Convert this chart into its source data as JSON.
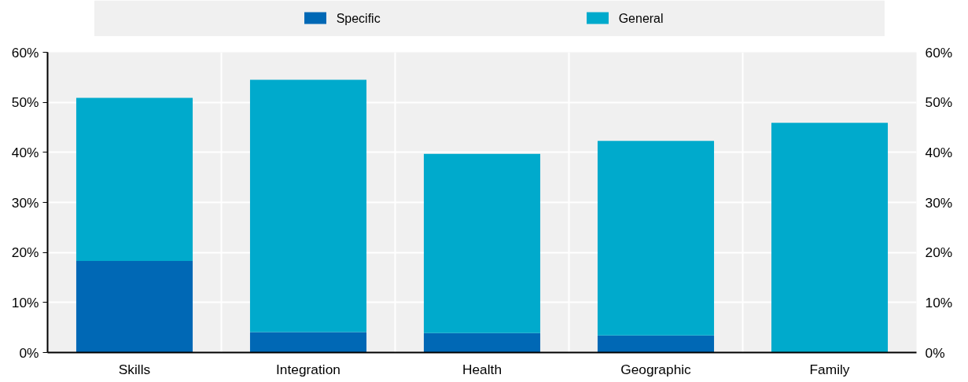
{
  "chart_data": {
    "type": "bar",
    "stacked": true,
    "categories": [
      "Skills",
      "Integration",
      "Health",
      "Geographic",
      "Family"
    ],
    "series": [
      {
        "name": "Specific",
        "color": "#0068b5",
        "values": [
          18.3,
          4.1,
          3.9,
          3.4,
          0
        ]
      },
      {
        "name": "General",
        "color": "#00aacc",
        "values": [
          32.6,
          50.4,
          35.8,
          38.9,
          45.9
        ]
      }
    ],
    "ylim": [
      0,
      60
    ],
    "yticks": [
      {
        "value": 0,
        "label": "0%"
      },
      {
        "value": 10,
        "label": "10%"
      },
      {
        "value": 20,
        "label": "20%"
      },
      {
        "value": 30,
        "label": "30%"
      },
      {
        "value": 40,
        "label": "40%"
      },
      {
        "value": 50,
        "label": "50%"
      },
      {
        "value": 60,
        "label": "60%"
      }
    ],
    "y2lim": [
      0,
      60
    ],
    "y2ticks": [
      {
        "value": 0,
        "label": "0%"
      },
      {
        "value": 10,
        "label": "10%"
      },
      {
        "value": 20,
        "label": "20%"
      },
      {
        "value": 30,
        "label": "30%"
      },
      {
        "value": 40,
        "label": "40%"
      },
      {
        "value": 50,
        "label": "50%"
      },
      {
        "value": 60,
        "label": "60%"
      }
    ],
    "grid": true,
    "legend": "top"
  }
}
